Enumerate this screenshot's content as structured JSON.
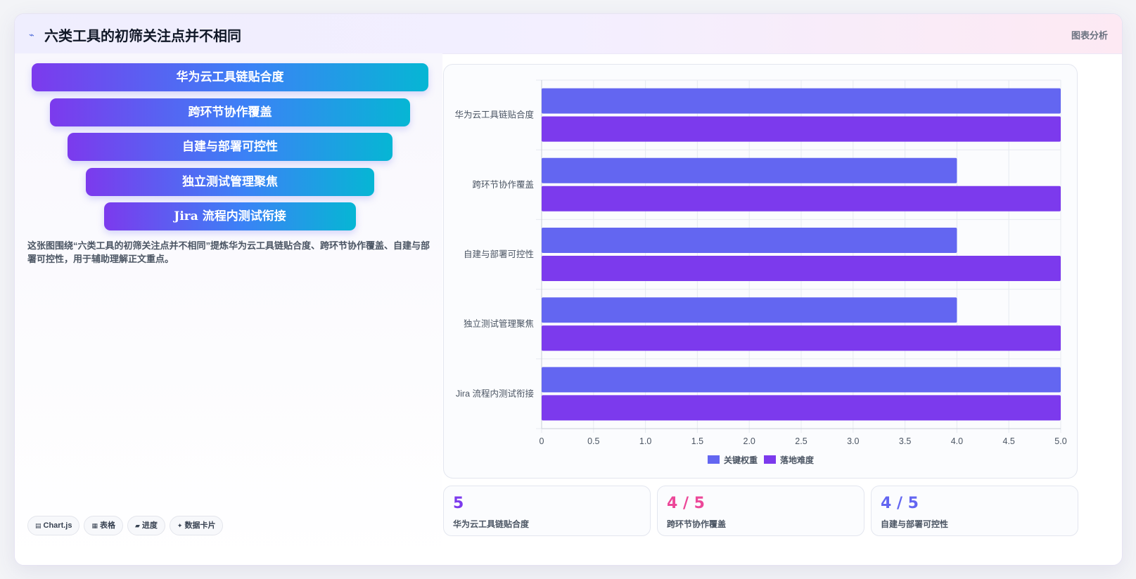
{
  "header": {
    "icon": "⌁",
    "title": "六类工具的初筛关注点并不相同",
    "right_label": "图表分析"
  },
  "funnel": {
    "items": [
      "华为云工具链贴合度",
      "跨环节协作覆盖",
      "自建与部署可控性",
      "独立测试管理聚焦",
      "Jira 流程内测试衔接"
    ]
  },
  "description": "这张图围绕“六类工具的初筛关注点并不相同”提炼华为云工具链贴合度、跨环节协作覆盖、自建与部署可控性，用于辅助理解正文重点。",
  "tags": [
    {
      "icon": "▤",
      "icon_name": "chart-icon",
      "label": "Chart.js"
    },
    {
      "icon": "▦",
      "icon_name": "table-icon",
      "label": "表格"
    },
    {
      "icon": "▰",
      "icon_name": "progress-icon",
      "label": "进度"
    },
    {
      "icon": "✦",
      "icon_name": "sparkle-icon",
      "label": "数据卡片"
    }
  ],
  "chart_data": {
    "type": "bar",
    "orientation": "horizontal",
    "categories": [
      "华为云工具链贴合度",
      "跨环节协作覆盖",
      "自建与部署可控性",
      "独立测试管理聚焦",
      "Jira 流程内测试衔接"
    ],
    "series": [
      {
        "name": "关键权重",
        "color": "#6366f1",
        "values": [
          5,
          4,
          4,
          4,
          5
        ]
      },
      {
        "name": "落地难度",
        "color": "#7c3aed",
        "values": [
          5,
          5,
          5,
          5,
          5
        ]
      }
    ],
    "xlim": [
      0,
      5
    ],
    "x_ticks": [
      "0",
      "0.5",
      "1.0",
      "1.5",
      "2.0",
      "2.5",
      "3.0",
      "3.5",
      "4.0",
      "4.5",
      "5.0"
    ],
    "grid": true,
    "legend": "bottom"
  },
  "stats": [
    {
      "value": "5",
      "label": "华为云工具链贴合度",
      "color": "#7c3aed"
    },
    {
      "value": "4 / 5",
      "label": "跨环节协作覆盖",
      "color": "#ec4899"
    },
    {
      "value": "4 / 5",
      "label": "自建与部署可控性",
      "color": "#6366f1"
    }
  ]
}
